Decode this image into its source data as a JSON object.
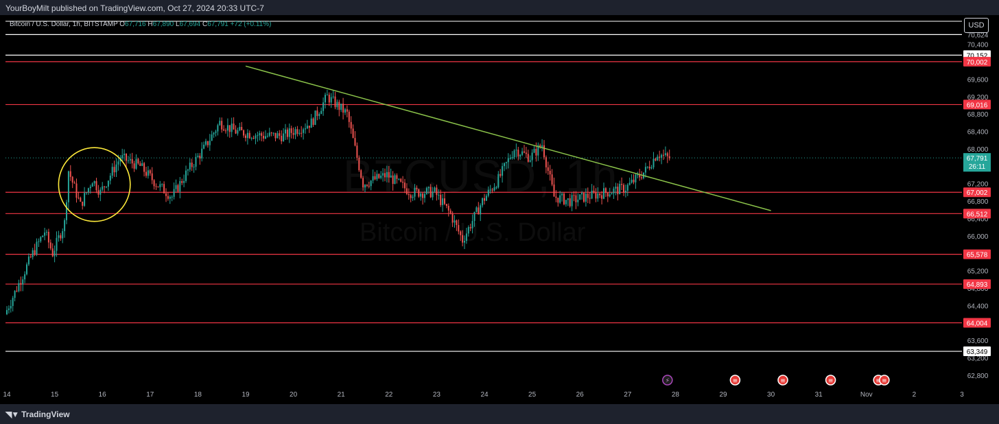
{
  "header": {
    "published": "YourBoyMilt published on TradingView.com, Oct 27, 2024 20:33 UTC-7"
  },
  "legend": {
    "symbol": "Bitcoin / U.S. Dollar, 1h, BITSTAMP",
    "o_label": "O",
    "o_value": "67,716",
    "h_label": "H",
    "h_value": "67,890",
    "l_label": "L",
    "l_value": "67,694",
    "c_label": "C",
    "c_value": "67,791",
    "change": "+72 (+0.11%)"
  },
  "currency_button": "USD",
  "watermark": {
    "ticker": "BTCUSD, 1h",
    "name": "Bitcoin / U.S. Dollar"
  },
  "footer": {
    "brand": "TradingView"
  },
  "colors": {
    "up": "#26a69a",
    "down": "#ef5350",
    "support_line": "#f23645",
    "white_line": "#ffffff",
    "trendline": "#8bc34a",
    "circle": "#ffeb3b",
    "price_tag": "#26a69a",
    "axis_text": "#b2b5be"
  },
  "chart_data": {
    "type": "candlestick",
    "symbol": "Bitcoin / U.S. Dollar, 1h, BITSTAMP",
    "y_range": [
      62560,
      70900
    ],
    "y_ticks": [
      "70,624",
      "70,400",
      "69,600",
      "69,200",
      "68,800",
      "68,400",
      "68,000",
      "67,200",
      "66,800",
      "66,400",
      "66,000",
      "65,600",
      "65,200",
      "64,800",
      "64,400",
      "63,600",
      "63,200",
      "62,800"
    ],
    "x_ticks": [
      "14",
      "15",
      "16",
      "17",
      "18",
      "19",
      "20",
      "21",
      "22",
      "23",
      "24",
      "25",
      "26",
      "27",
      "28",
      "29",
      "30",
      "31",
      "Nov",
      "2",
      "3"
    ],
    "red_levels": [
      {
        "price": 70002,
        "label": "70,002"
      },
      {
        "price": 69016,
        "label": "69,016"
      },
      {
        "price": 67002,
        "label": "67,002"
      },
      {
        "price": 66512,
        "label": "66,512"
      },
      {
        "price": 65578,
        "label": "65,578"
      },
      {
        "price": 64893,
        "label": "64,893"
      },
      {
        "price": 64004,
        "label": "64,004"
      }
    ],
    "white_levels": [
      {
        "price": 70624,
        "label": ""
      },
      {
        "price": 70152,
        "label": "70,152"
      },
      {
        "price": 63349,
        "label": "63,349"
      }
    ],
    "current_price": {
      "price": 67791,
      "label": "67,791",
      "countdown": "26:11"
    },
    "trendline": {
      "from": {
        "date": "Oct 19 00:00",
        "price": 69900
      },
      "to": {
        "date": "Oct 30 00:00",
        "price": 66580
      }
    },
    "circle": {
      "center": {
        "date": "Oct 15 20:00",
        "price": 67180
      },
      "radius_hours": 18
    },
    "events": [
      {
        "date": "Oct 27 20:00",
        "icon": "lightning-icon"
      },
      {
        "date": "Oct 29 06:00",
        "icon": "us-flag-icon"
      },
      {
        "date": "Oct 30 06:00",
        "icon": "us-flag-icon"
      },
      {
        "date": "Oct 31 06:00",
        "icon": "us-flag-icon"
      },
      {
        "date": "Nov 1 06:00",
        "icon": "us-flag-icon"
      },
      {
        "date": "Nov 1 09:00",
        "icon": "us-flag-icon"
      }
    ],
    "candles_from": "Oct 14 00:00",
    "candles_to": "Oct 27 21:00",
    "path_anchors": [
      [
        "Oct 14 00:00",
        64200
      ],
      [
        "Oct 14 14:00",
        65600
      ],
      [
        "Oct 14 20:00",
        66100
      ],
      [
        "Oct 15 00:00",
        65600
      ],
      [
        "Oct 15 06:00",
        66300
      ],
      [
        "Oct 15 08:00",
        67500
      ],
      [
        "Oct 15 14:00",
        66700
      ],
      [
        "Oct 15 20:00",
        67300
      ],
      [
        "Oct 16 00:00",
        67000
      ],
      [
        "Oct 16 10:00",
        67800
      ],
      [
        "Oct 16 20:00",
        67600
      ],
      [
        "Oct 17 04:00",
        67200
      ],
      [
        "Oct 17 12:00",
        66900
      ],
      [
        "Oct 17 20:00",
        67500
      ],
      [
        "Oct 18 04:00",
        68000
      ],
      [
        "Oct 18 12:00",
        68600
      ],
      [
        "Oct 18 20:00",
        68400
      ],
      [
        "Oct 19 10:00",
        68300
      ],
      [
        "Oct 19 20:00",
        68300
      ],
      [
        "Oct 20 10:00",
        68600
      ],
      [
        "Oct 20 18:00",
        69200
      ],
      [
        "Oct 21 04:00",
        68800
      ],
      [
        "Oct 21 12:00",
        67200
      ],
      [
        "Oct 22 00:00",
        67400
      ],
      [
        "Oct 22 12:00",
        67000
      ],
      [
        "Oct 23 00:00",
        67000
      ],
      [
        "Oct 23 08:00",
        66500
      ],
      [
        "Oct 23 14:00",
        65900
      ],
      [
        "Oct 24 00:00",
        66800
      ],
      [
        "Oct 24 08:00",
        67300
      ],
      [
        "Oct 24 16:00",
        68000
      ],
      [
        "Oct 25 00:00",
        67800
      ],
      [
        "Oct 25 06:00",
        68100
      ],
      [
        "Oct 25 12:00",
        66900
      ],
      [
        "Oct 25 20:00",
        66800
      ],
      [
        "Oct 26 04:00",
        66900
      ],
      [
        "Oct 26 14:00",
        67000
      ],
      [
        "Oct 27 00:00",
        67100
      ],
      [
        "Oct 27 10:00",
        67500
      ],
      [
        "Oct 27 16:00",
        67900
      ],
      [
        "Oct 27 21:00",
        67791
      ]
    ]
  }
}
